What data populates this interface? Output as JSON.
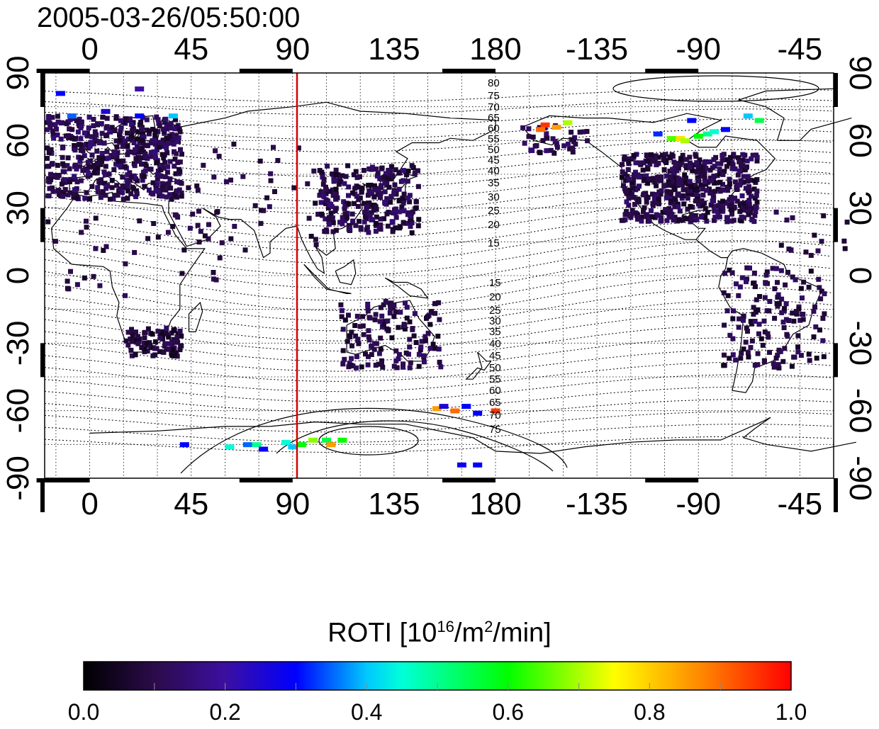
{
  "timestamp": "2005-03-26/05:50:00",
  "lon_ticks": [
    "0",
    "45",
    "90",
    "135",
    "180",
    "-135",
    "-90",
    "-45"
  ],
  "lat_ticks": [
    "90",
    "60",
    "30",
    "0",
    "-30",
    "-60",
    "-90"
  ],
  "colorbar": {
    "title_main": "ROTI  [10",
    "title_exp1": "16",
    "title_mid": "/m",
    "title_exp2": "2",
    "title_end": "/min]",
    "tick_labels": [
      "0.0",
      "0.2",
      "0.4",
      "0.6",
      "0.8",
      "1.0"
    ],
    "range": [
      0.0,
      1.0
    ]
  },
  "contour_labels_north": [
    "80",
    "75",
    "70",
    "65",
    "60",
    "55",
    "50",
    "45",
    "40",
    "35",
    "30",
    "25",
    "20",
    "15"
  ],
  "contour_labels_south": [
    "15",
    "20",
    "25",
    "30",
    "35",
    "40",
    "45",
    "50",
    "55",
    "60",
    "65",
    "70",
    "75"
  ],
  "meridian_marker": {
    "longitude": 93,
    "color": "#d40000"
  },
  "colors": {
    "frame": "#000000",
    "marker": "#d40000",
    "low": "#2a0a3a",
    "mid": "#3a1470"
  }
}
